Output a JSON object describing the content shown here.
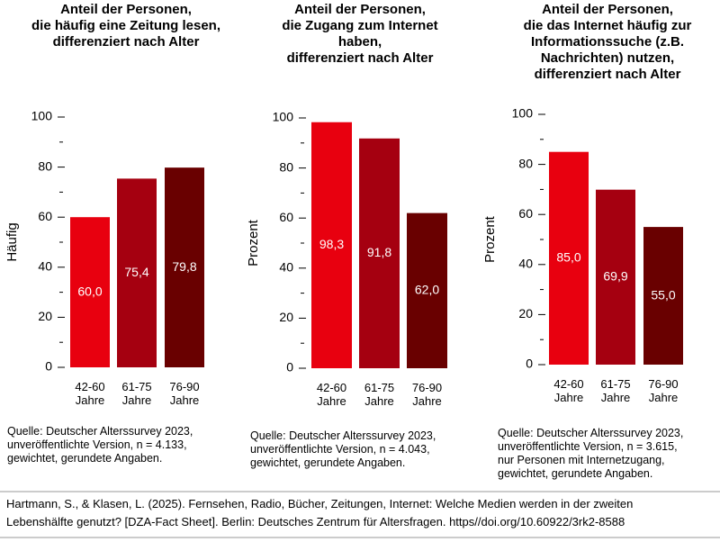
{
  "chart_data": [
    {
      "type": "bar",
      "title": "Anteil der Personen,\ndie häufig eine Zeitung lesen,\ndifferenziert nach Alter",
      "ylabel": "Häufig",
      "categories": [
        "42-60\nJahre",
        "61-75\nJahre",
        "76-90\nJahre"
      ],
      "values": [
        60.0,
        75.4,
        79.8
      ],
      "value_labels": [
        "60,0",
        "75,4",
        "79,8"
      ],
      "colors": [
        "#e8000f",
        "#a50010",
        "#690000"
      ],
      "ylim": [
        0,
        100
      ],
      "yticks": [
        0,
        20,
        40,
        60,
        80,
        100
      ],
      "minor_yticks": [
        10,
        30,
        50,
        70,
        90
      ],
      "note": "Quelle: Deutscher Alterssurvey 2023,\nunveröffentlichte Version, n = 4.133,\ngewichtet, gerundete Angaben."
    },
    {
      "type": "bar",
      "title": "Anteil der Personen,\ndie Zugang zum Internet\nhaben,\ndifferenziert nach Alter",
      "ylabel": "Prozent",
      "categories": [
        "42-60\nJahre",
        "61-75\nJahre",
        "76-90\nJahre"
      ],
      "values": [
        98.3,
        91.8,
        62.0
      ],
      "value_labels": [
        "98,3",
        "91,8",
        "62,0"
      ],
      "colors": [
        "#e8000f",
        "#a50010",
        "#690000"
      ],
      "ylim": [
        0,
        100
      ],
      "yticks": [
        0,
        20,
        40,
        60,
        80,
        100
      ],
      "minor_yticks": [
        10,
        30,
        50,
        70,
        90
      ],
      "note": "Quelle: Deutscher Alterssurvey 2023,\nunveröffentlichte Version, n = 4.043,\ngewichtet, gerundete Angaben."
    },
    {
      "type": "bar",
      "title": "Anteil der Personen,\ndie das Internet häufig zur\nInformationssuche (z.B.\nNachrichten) nutzen,\ndifferenziert nach Alter",
      "ylabel": "Prozent",
      "categories": [
        "42-60\nJahre",
        "61-75\nJahre",
        "76-90\nJahre"
      ],
      "values": [
        85.0,
        69.9,
        55.0
      ],
      "value_labels": [
        "85,0",
        "69,9",
        "55,0"
      ],
      "colors": [
        "#e8000f",
        "#a50010",
        "#690000"
      ],
      "ylim": [
        0,
        100
      ],
      "yticks": [
        0,
        20,
        40,
        60,
        80,
        100
      ],
      "minor_yticks": [
        10,
        30,
        50,
        70,
        90
      ],
      "note": "Quelle: Deutscher Alterssurvey 2023,\nunveröffentlichte Version, n = 3.615,\nnur Personen mit Internetzugang,\ngewichtet, gerundete Angaben."
    }
  ],
  "citation": "Hartmann, S., & Klasen, L. (2025). Fernsehen, Radio, Bücher, Zeitungen, Internet: Welche Medien werden in der zweiten\nLebenshälfte genutzt? [DZA-Fact Sheet]. Berlin: Deutsches Zentrum für Altersfragen. https//doi.org/10.60922/3rk2-8588"
}
